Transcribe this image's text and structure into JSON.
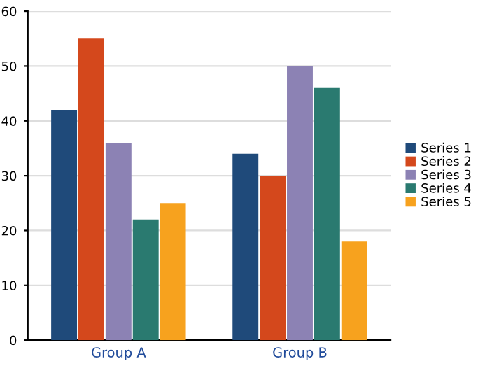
{
  "chart_data": {
    "type": "bar",
    "categories": [
      "Group A",
      "Group B"
    ],
    "series": [
      {
        "name": "Series 1",
        "color": "#1f4a7a",
        "values": [
          42,
          34
        ]
      },
      {
        "name": "Series 2",
        "color": "#d4481c",
        "values": [
          55,
          30
        ]
      },
      {
        "name": "Series 3",
        "color": "#8c82b4",
        "values": [
          36,
          50
        ]
      },
      {
        "name": "Series 4",
        "color": "#2a7a70",
        "values": [
          22,
          46
        ]
      },
      {
        "name": "Series 5",
        "color": "#f7a21e",
        "values": [
          25,
          18
        ]
      }
    ],
    "ylim": [
      0,
      60
    ],
    "yticks": [
      0,
      10,
      20,
      30,
      40,
      50,
      60
    ],
    "grid": "y",
    "legend": "right"
  }
}
